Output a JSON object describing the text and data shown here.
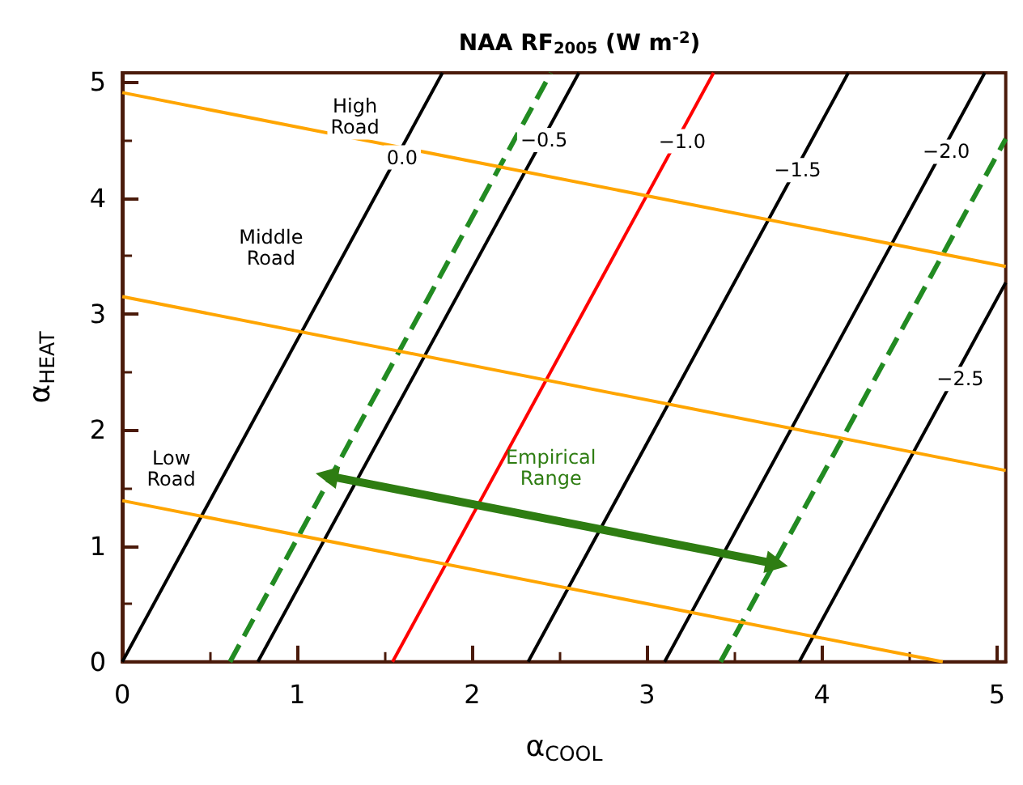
{
  "chart_data": {
    "type": "line",
    "title": "NAA RF$_{2005}$ (W m$^{-2}$)",
    "xlabel": "α$_{COOL}$",
    "ylabel": "α$_{HEAT}$",
    "xlim": [
      0,
      5.05
    ],
    "ylim": [
      0,
      5.08
    ],
    "xticks": [
      0,
      1,
      2,
      3,
      4,
      5
    ],
    "yticks": [
      0,
      1,
      2,
      3,
      4,
      5
    ],
    "grid": false,
    "marker": "none",
    "series": [
      {
        "color": "#000000",
        "x": [
          0,
          1.83
        ],
        "values": [
          0,
          5.08
        ]
      },
      {
        "color": "#000000",
        "x": [
          0.775,
          2.61
        ],
        "values": [
          0,
          5.08
        ]
      },
      {
        "color": "#ff0000",
        "x": [
          1.545,
          3.38
        ],
        "values": [
          0,
          5.08
        ]
      },
      {
        "color": "#000000",
        "x": [
          2.32,
          4.15
        ],
        "values": [
          0,
          5.08
        ]
      },
      {
        "color": "#000000",
        "x": [
          3.1,
          4.93
        ],
        "values": [
          0,
          5.08
        ]
      },
      {
        "color": "#000000",
        "x": [
          3.87,
          5.05
        ],
        "values": [
          0,
          3.27
        ]
      },
      {
        "color": "#228b22",
        "line_style": "dashed",
        "x": [
          0.616,
          2.45
        ],
        "values": [
          0,
          5.08
        ]
      },
      {
        "color": "#228b22",
        "line_style": "dashed",
        "x": [
          3.42,
          5.05
        ],
        "values": [
          0,
          4.51
        ]
      },
      {
        "color": "#ffa500",
        "x": [
          0,
          5.05
        ],
        "values": [
          4.91,
          3.41
        ]
      },
      {
        "color": "#ffa500",
        "x": [
          0,
          5.05
        ],
        "values": [
          3.15,
          1.65
        ]
      },
      {
        "color": "#ffa500",
        "x": [
          0,
          4.69
        ],
        "values": [
          1.39,
          0
        ]
      },
      {
        "color": "#2e7d12",
        "marker": "triangle",
        "x": [
          1.19,
          3.72
        ],
        "values": [
          1.6,
          0.85
        ]
      }
    ],
    "annotations": [
      {
        "text": "0.0",
        "x": 1.6,
        "y": 4.35
      },
      {
        "text": "−0.5",
        "x": 2.41,
        "y": 4.5
      },
      {
        "text": "−1.0",
        "x": 3.2,
        "y": 4.49
      },
      {
        "text": "−1.5",
        "x": 3.86,
        "y": 4.24
      },
      {
        "text": "−2.0",
        "x": 4.71,
        "y": 4.4
      },
      {
        "text": "−2.5",
        "x": 4.79,
        "y": 2.44
      },
      {
        "text": "High\nRoad",
        "x": 1.33,
        "y": 4.7
      },
      {
        "text": "Middle\nRoad",
        "x": 0.85,
        "y": 3.57
      },
      {
        "text": "Low\nRoad",
        "x": 0.28,
        "y": 1.67
      },
      {
        "text": "Empirical\nRange",
        "x": 2.45,
        "y": 1.23
      }
    ]
  }
}
